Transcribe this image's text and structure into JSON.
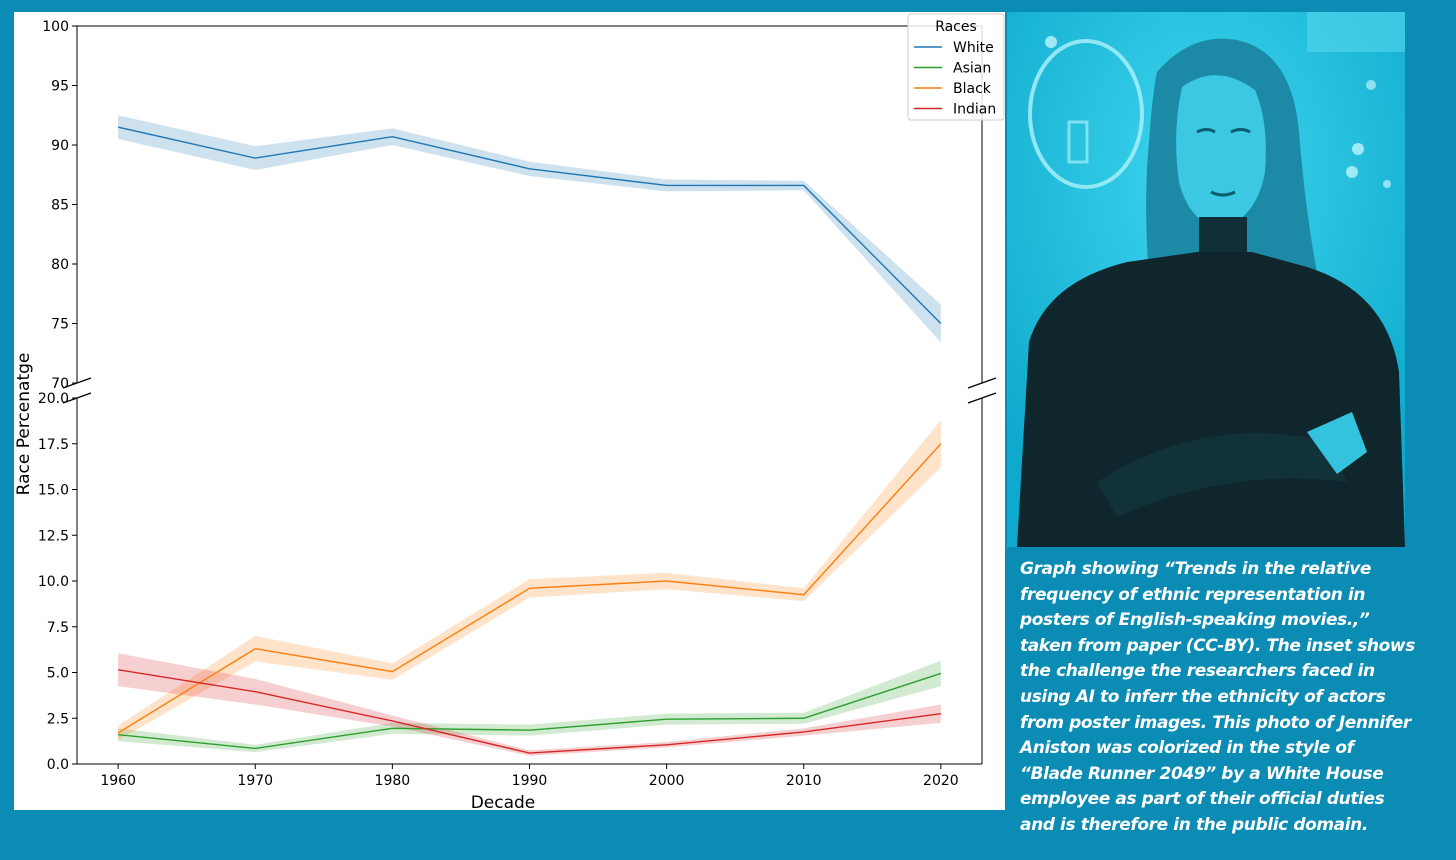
{
  "chart_data": {
    "type": "line",
    "xlabel": "Decade",
    "ylabel": "Race Percenatge",
    "x": [
      1960,
      1970,
      1980,
      1990,
      2000,
      2010,
      2020
    ],
    "x_ticks": [
      "1960",
      "1970",
      "1980",
      "1990",
      "2000",
      "2010",
      "2020"
    ],
    "y_axis_break": true,
    "ylim_upper": [
      70,
      100
    ],
    "ylim_lower": [
      0,
      20
    ],
    "y_ticks_upper": [
      "70",
      "75",
      "80",
      "85",
      "90",
      "95",
      "100"
    ],
    "y_ticks_lower": [
      "0.0",
      "2.5",
      "5.0",
      "7.5",
      "10.0",
      "12.5",
      "15.0",
      "17.5",
      "20.0"
    ],
    "grid": false,
    "confidence_bands": true,
    "legend": {
      "title": "Races",
      "position": "top-right"
    },
    "series": [
      {
        "name": "White",
        "color": "#1f77b4",
        "values": [
          91.5,
          88.9,
          90.7,
          88.0,
          86.6,
          86.6,
          75.0
        ],
        "band": [
          1.0,
          1.0,
          0.7,
          0.6,
          0.5,
          0.4,
          1.6
        ]
      },
      {
        "name": "Asian",
        "color": "#2ca02c",
        "values": [
          1.6,
          0.85,
          1.95,
          1.85,
          2.45,
          2.5,
          4.95
        ],
        "band": [
          0.35,
          0.2,
          0.3,
          0.3,
          0.3,
          0.3,
          0.7
        ]
      },
      {
        "name": "Black",
        "color": "#ff7f0e",
        "values": [
          1.7,
          6.3,
          5.05,
          9.6,
          10.0,
          9.25,
          17.5
        ],
        "band": [
          0.4,
          0.7,
          0.45,
          0.5,
          0.45,
          0.35,
          1.3
        ]
      },
      {
        "name": "Indian",
        "color": "#d62728",
        "values": [
          5.15,
          3.95,
          2.35,
          0.6,
          1.05,
          1.75,
          2.75
        ],
        "band": [
          0.9,
          0.7,
          0.3,
          0.15,
          0.15,
          0.2,
          0.5
        ]
      }
    ]
  },
  "caption": {
    "text": "Graph showing “Trends in the relative frequency of ethnic representation in posters of English-speaking movies.,” taken from paper (CC-BY). The inset shows the challenge the researchers faced in using AI to inferr the ethnicity of actors from poster images. This photo of Jennifer Aniston was colorized in the style of “Blade Runner 2049” by a White House employee as part of their official duties and is therefore in the public domain."
  },
  "photo": {
    "subject": "portrait-photo",
    "tint": "#1fb8d8"
  }
}
